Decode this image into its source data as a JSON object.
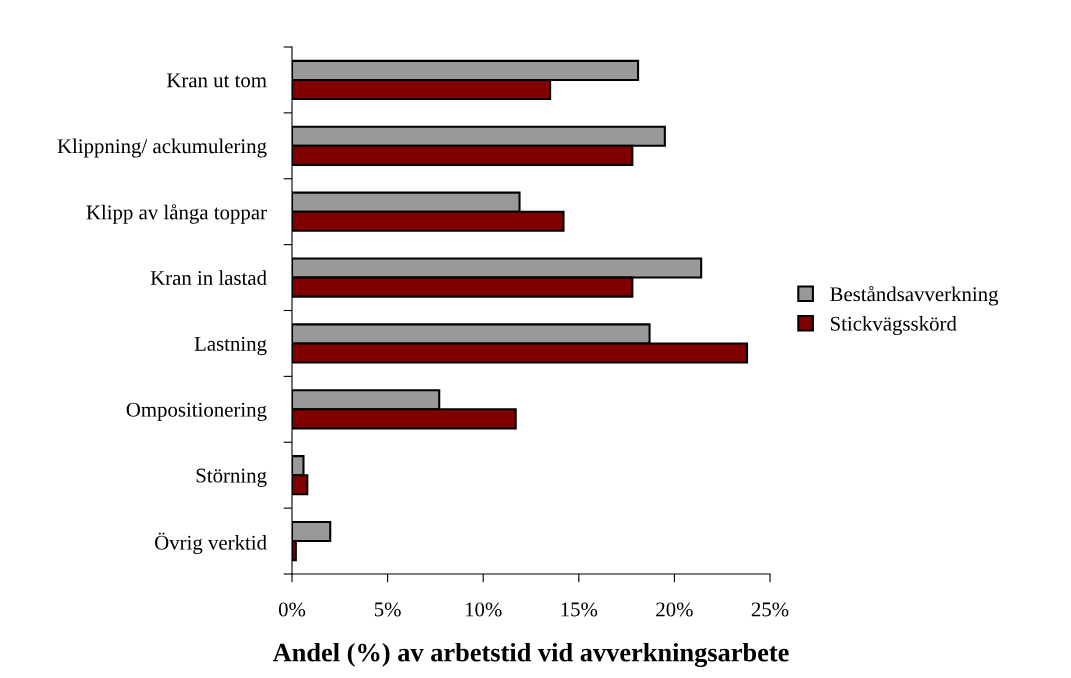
{
  "chart_data": {
    "type": "bar",
    "orientation": "horizontal",
    "xlabel": "Andel (%) av arbetstid vid avverkningsarbete",
    "categories": [
      "Kran ut tom",
      "Klippning/ ackumulering",
      "Klipp av långa toppar",
      "Kran in lastad",
      "Lastning",
      "Ompositionering",
      "Störning",
      "Övrig verktid"
    ],
    "series": [
      {
        "name": "Beståndsavverkning",
        "color": "#999999",
        "values": [
          18.1,
          19.5,
          11.9,
          21.4,
          18.7,
          7.7,
          0.6,
          2.0
        ]
      },
      {
        "name": "Stickvägsskörd",
        "color": "#800000",
        "values": [
          13.5,
          17.8,
          14.2,
          17.8,
          23.8,
          11.7,
          0.8,
          0.2
        ]
      }
    ],
    "xlim": [
      0,
      25
    ],
    "xticks": [
      {
        "value": 0,
        "label": "0%"
      },
      {
        "value": 5,
        "label": "5%"
      },
      {
        "value": 10,
        "label": "10%"
      },
      {
        "value": 15,
        "label": "15%"
      },
      {
        "value": 20,
        "label": "20%"
      },
      {
        "value": 25,
        "label": "25%"
      }
    ],
    "grid": false,
    "legend": "right"
  }
}
